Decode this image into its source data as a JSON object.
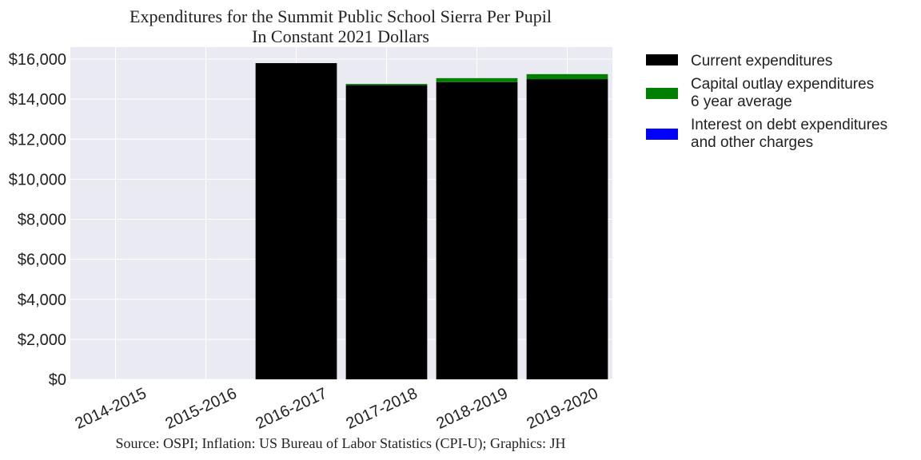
{
  "chart_data": {
    "type": "bar",
    "stacked": true,
    "title": "Expenditures for the Summit Public School Sierra Per Pupil",
    "subtitle": "In Constant 2021 Dollars",
    "source": "Source: OSPI; Inflation: US Bureau of Labor Statistics (CPI-U); Graphics: JH",
    "xlabel": "",
    "ylabel": "",
    "categories": [
      "2014-2015",
      "2015-2016",
      "2016-2017",
      "2017-2018",
      "2018-2019",
      "2019-2020"
    ],
    "ylim": [
      0,
      16600
    ],
    "yticks": [
      0,
      2000,
      4000,
      6000,
      8000,
      10000,
      12000,
      14000,
      16000
    ],
    "ytick_labels": [
      "$0",
      "$2,000",
      "$4,000",
      "$6,000",
      "$8,000",
      "$10,000",
      "$12,000",
      "$14,000",
      "$16,000"
    ],
    "grid": true,
    "legend_position": "outside-right",
    "series": [
      {
        "name": "Current expenditures",
        "color": "#000000",
        "values": [
          0,
          0,
          15800,
          14700,
          14850,
          15000
        ]
      },
      {
        "name": "Capital outlay expenditures\n6 year average",
        "color": "#008000",
        "values": [
          0,
          0,
          0,
          60,
          200,
          250
        ]
      },
      {
        "name": "Interest on debt expenditures\nand other charges",
        "color": "#0000ff",
        "values": [
          0,
          0,
          0,
          0,
          0,
          0
        ]
      }
    ]
  }
}
